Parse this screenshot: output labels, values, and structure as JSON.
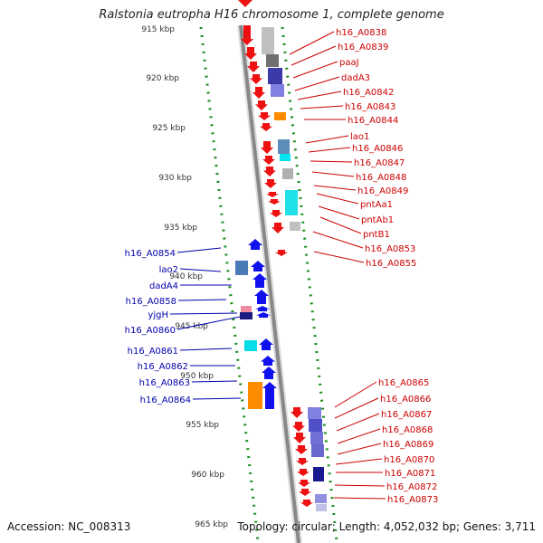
{
  "title": "Ralstonia eutropha H16 chromosome 1, complete genome",
  "footer": {
    "accession": "Accession: NC_008313",
    "stats": "Topology: circular; Length: 4,052,032 bp; Genes: 3,711"
  },
  "colors": {
    "forward_gene": "#ee1111",
    "reverse_gene": "#1111ee",
    "right_label": "#cc0000",
    "left_label": "#0000aa",
    "ruler_dots": "#1a8c1a",
    "backbone": "#888888"
  },
  "ruler_ticks": [
    "915 kbp",
    "920 kbp",
    "925 kbp",
    "930 kbp",
    "935 kbp",
    "940 kbp",
    "945 kbp",
    "950 kbp",
    "955 kbp",
    "960 kbp",
    "965 kbp"
  ],
  "right_genes": [
    "h16_A0838",
    "h16_A0839",
    "paaJ",
    "dadA3",
    "h16_A0842",
    "h16_A0843",
    "h16_A0844",
    "lao1",
    "h16_A0846",
    "h16_A0847",
    "h16_A0848",
    "h16_A0849",
    "pntAa1",
    "pntAb1",
    "pntB1",
    "h16_A0853",
    "h16_A0855",
    "h16_A0865",
    "h16_A0866",
    "h16_A0867",
    "h16_A0868",
    "h16_A0869",
    "h16_A0870",
    "h16_A0871",
    "h16_A0872",
    "h16_A0873"
  ],
  "left_genes": [
    "h16_A0854",
    "lao2",
    "dadA4",
    "h16_A0858",
    "yjgH",
    "h16_A0860",
    "h16_A0861",
    "h16_A0862",
    "h16_A0863",
    "h16_A0864"
  ]
}
